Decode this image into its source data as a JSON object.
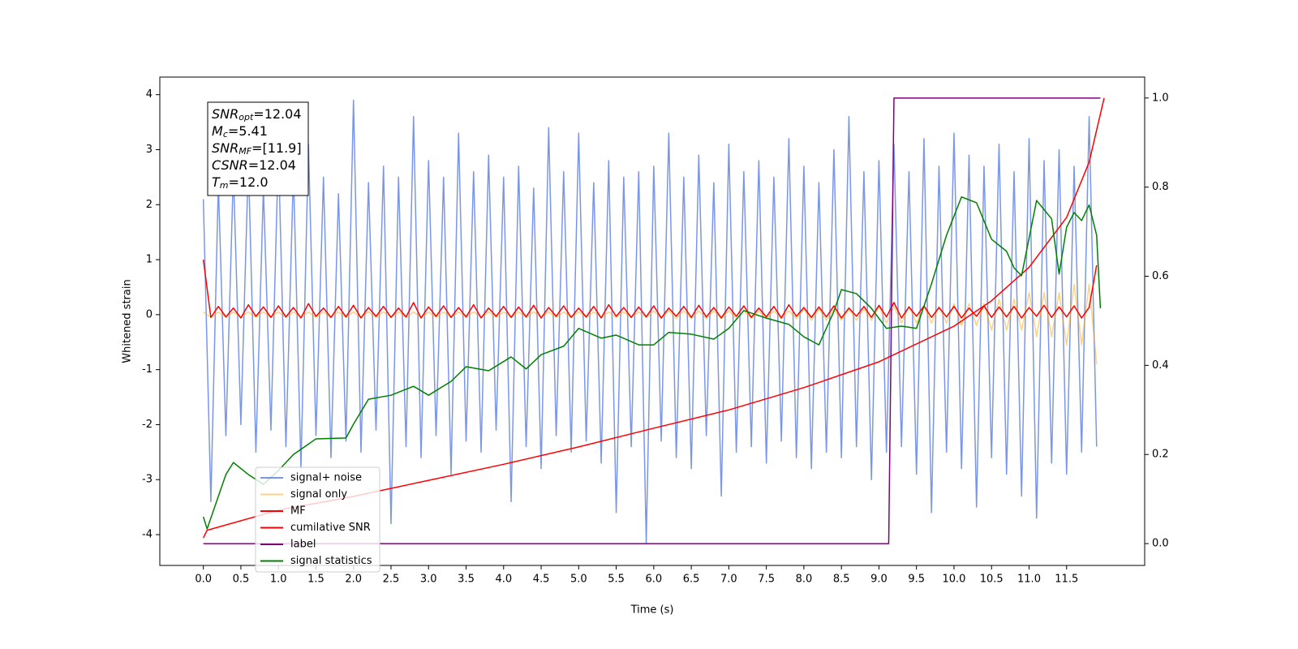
{
  "chart_data": {
    "type": "line",
    "xlabel": "Time (s)",
    "ylabel": "Whitened strain",
    "xlim": [
      -0.58,
      12.54
    ],
    "ylim": [
      -4.56,
      4.32
    ],
    "y2lim": [
      -0.049,
      1.047
    ],
    "xticks": [
      {
        "value": 0,
        "label": "0.0"
      },
      0.5,
      {
        "value": 1,
        "label": "1.0"
      },
      1.5,
      {
        "value": 2,
        "label": "2.0"
      },
      2.5,
      {
        "value": 3,
        "label": "3.0"
      },
      3.5,
      {
        "value": 4,
        "label": "4.0"
      },
      4.5,
      {
        "value": 5,
        "label": "5.0"
      },
      5.5,
      {
        "value": 6,
        "label": "6.0"
      },
      6.5,
      {
        "value": 7,
        "label": "7.0"
      },
      7.5,
      {
        "value": 8,
        "label": "8.0"
      },
      8.5,
      {
        "value": 9,
        "label": "9.0"
      },
      9.5,
      {
        "value": 10,
        "label": "10.0"
      },
      10.5,
      {
        "value": 11,
        "label": "11.0"
      },
      11.5
    ],
    "yticks": [
      -4,
      -3,
      -2,
      -1,
      0,
      1,
      2,
      3,
      4
    ],
    "y2ticks": [
      {
        "value": 0,
        "label": "0.0"
      },
      0.2,
      0.4,
      0.6,
      0.8,
      {
        "value": 1,
        "label": "1.0"
      }
    ],
    "legend_loc": "lower left",
    "annotations": [
      {
        "name": "SNR",
        "sub": "opt",
        "text": "=12.04"
      },
      {
        "name": "M",
        "sub": "c",
        "text": "=5.41"
      },
      {
        "name": "SNR",
        "sub": "MF",
        "text": "=[11.9]"
      },
      {
        "name": "CSNR",
        "text": "=12.04"
      },
      {
        "name": "T",
        "sub": "m",
        "text": "=12.0"
      }
    ],
    "x": [
      0,
      0.1,
      0.2,
      0.3,
      0.4,
      0.5,
      0.6,
      0.7,
      0.8,
      0.9,
      1,
      1.1,
      1.2,
      1.3,
      1.4,
      1.5,
      1.6,
      1.7,
      1.8,
      1.9,
      2,
      2.1,
      2.2,
      2.3,
      2.4,
      2.5,
      2.6,
      2.7,
      2.8,
      2.9,
      3,
      3.1,
      3.2,
      3.3,
      3.4,
      3.5,
      3.6,
      3.7,
      3.8,
      3.9,
      4,
      4.1,
      4.2,
      4.3,
      4.4,
      4.5,
      4.6,
      4.7,
      4.8,
      4.9,
      5,
      5.1,
      5.2,
      5.3,
      5.4,
      5.5,
      5.6,
      5.7,
      5.8,
      5.9,
      6,
      6.1,
      6.2,
      6.3,
      6.4,
      6.5,
      6.6,
      6.7,
      6.8,
      6.9,
      7,
      7.1,
      7.2,
      7.3,
      7.4,
      7.5,
      7.6,
      7.7,
      7.8,
      7.9,
      8,
      8.1,
      8.2,
      8.3,
      8.4,
      8.5,
      8.6,
      8.7,
      8.8,
      8.9,
      9,
      9.1,
      9.2,
      9.3,
      9.4,
      9.5,
      9.6,
      9.7,
      9.8,
      9.9,
      10,
      10.1,
      10.2,
      10.3,
      10.4,
      10.5,
      10.6,
      10.7,
      10.8,
      10.9,
      11,
      11.1,
      11.2,
      11.3,
      11.4,
      11.5,
      11.6,
      11.7,
      11.8,
      11.9
    ],
    "series": [
      {
        "name": "signal+ noise",
        "color": "royalblue",
        "opacity": 0.7,
        "values": [
          2.1,
          -3.4,
          2.4,
          -2.2,
          2.6,
          -2.0,
          2.8,
          -2.5,
          2.3,
          -2.1,
          3.0,
          -2.4,
          2.6,
          -2.8,
          3.1,
          -2.2,
          2.5,
          -2.6,
          2.2,
          -2.3,
          3.9,
          -2.5,
          2.4,
          -2.1,
          2.7,
          -3.8,
          2.5,
          -2.4,
          3.6,
          -2.6,
          2.8,
          -2.2,
          2.5,
          -2.9,
          3.3,
          -2.3,
          2.6,
          -2.5,
          2.9,
          -2.1,
          2.5,
          -3.4,
          2.7,
          -2.4,
          2.3,
          -2.8,
          3.4,
          -2.2,
          2.6,
          -2.5,
          3.3,
          -2.3,
          2.4,
          -2.7,
          2.8,
          -3.6,
          2.5,
          -2.4,
          2.6,
          -4.15,
          2.7,
          -2.3,
          3.3,
          -2.6,
          2.5,
          -2.8,
          2.9,
          -2.2,
          2.4,
          -3.3,
          3.1,
          -2.5,
          2.6,
          -2.4,
          2.8,
          -2.7,
          2.5,
          -2.3,
          3.2,
          -2.6,
          2.7,
          -2.8,
          2.4,
          -2.5,
          3.0,
          -2.6,
          3.6,
          -2.4,
          2.6,
          -3.0,
          2.8,
          -2.5,
          3.1,
          -2.4,
          2.6,
          -2.9,
          3.2,
          -3.6,
          2.7,
          -2.5,
          3.3,
          -2.8,
          2.9,
          -3.5,
          2.7,
          -2.6,
          3.1,
          -2.9,
          2.6,
          -3.3,
          3.2,
          -3.7,
          2.8,
          -2.7,
          3.0,
          -2.9,
          2.7,
          -2.5,
          3.6,
          -2.4
        ]
      },
      {
        "name": "signal only",
        "color": "orange",
        "opacity": 0.5,
        "values": [
          0.05,
          -0.05,
          0.05,
          -0.05,
          0.05,
          -0.05,
          0.05,
          -0.05,
          0.05,
          -0.05,
          0.05,
          -0.05,
          0.05,
          -0.05,
          0.05,
          -0.05,
          0.05,
          -0.05,
          0.05,
          -0.05,
          0.05,
          -0.05,
          0.05,
          -0.05,
          0.05,
          -0.05,
          0.05,
          -0.05,
          0.05,
          -0.05,
          0.05,
          -0.05,
          0.05,
          -0.05,
          0.05,
          -0.05,
          0.05,
          -0.05,
          0.05,
          -0.05,
          0.05,
          -0.05,
          0.05,
          -0.05,
          0.05,
          -0.05,
          0.05,
          -0.05,
          0.05,
          -0.05,
          0.05,
          -0.05,
          0.05,
          -0.05,
          0.05,
          -0.05,
          0.05,
          -0.05,
          0.05,
          -0.05,
          0.07,
          -0.07,
          0.07,
          -0.07,
          0.07,
          -0.07,
          0.07,
          -0.07,
          0.07,
          -0.07,
          0.07,
          -0.07,
          0.07,
          -0.07,
          0.07,
          -0.07,
          0.07,
          -0.07,
          0.07,
          -0.07,
          0.1,
          -0.1,
          0.1,
          -0.1,
          0.1,
          -0.1,
          0.1,
          -0.1,
          0.1,
          -0.1,
          0.15,
          -0.15,
          0.15,
          -0.15,
          0.15,
          -0.15,
          0.15,
          -0.15,
          0.15,
          -0.15,
          0.2,
          -0.2,
          0.2,
          -0.2,
          0.2,
          -0.28,
          0.28,
          -0.28,
          0.28,
          -0.28,
          0.4,
          -0.4,
          0.4,
          -0.4,
          0.4,
          -0.55,
          0.55,
          -0.55,
          0.55,
          -0.9
        ]
      },
      {
        "name": "MF",
        "color": "red",
        "opacity": 1,
        "values": [
          1.0,
          -0.05,
          0.15,
          -0.04,
          0.12,
          -0.06,
          0.18,
          -0.03,
          0.14,
          -0.05,
          0.16,
          -0.04,
          0.13,
          -0.06,
          0.2,
          -0.03,
          0.12,
          -0.05,
          0.15,
          -0.04,
          0.17,
          -0.06,
          0.13,
          -0.03,
          0.15,
          -0.05,
          0.12,
          -0.04,
          0.22,
          -0.06,
          0.14,
          -0.03,
          0.16,
          -0.05,
          0.13,
          -0.04,
          0.18,
          -0.06,
          0.12,
          -0.03,
          0.15,
          -0.05,
          0.14,
          -0.04,
          0.17,
          -0.06,
          0.13,
          -0.03,
          0.16,
          -0.05,
          0.12,
          -0.04,
          0.15,
          -0.06,
          0.18,
          -0.03,
          0.13,
          -0.05,
          0.14,
          -0.04,
          0.16,
          -0.06,
          0.12,
          -0.03,
          0.15,
          -0.05,
          0.17,
          -0.04,
          0.13,
          -0.06,
          0.14,
          -0.03,
          0.16,
          -0.05,
          0.12,
          -0.04,
          0.15,
          -0.06,
          0.18,
          -0.03,
          0.13,
          -0.05,
          0.14,
          -0.04,
          0.16,
          -0.06,
          0.12,
          -0.03,
          0.15,
          -0.05,
          0.17,
          -0.04,
          0.22,
          -0.06,
          0.14,
          -0.03,
          0.16,
          -0.05,
          0.13,
          -0.04,
          0.15,
          -0.06,
          0.12,
          -0.03,
          0.16,
          -0.05,
          0.14,
          -0.04,
          0.15,
          -0.06,
          0.13,
          -0.03,
          0.17,
          -0.05,
          0.14,
          -0.04,
          0.16,
          -0.06,
          0.13,
          0.9
        ]
      },
      {
        "name": "cumilative SNR",
        "color": "red",
        "opacity": 1,
        "axis": "y2",
        "x": [
          0,
          0.05,
          1,
          2,
          3,
          4,
          5,
          6,
          7,
          8,
          9,
          10,
          10.5,
          11,
          11.5,
          11.8,
          12
        ],
        "values": [
          0.013,
          0.03,
          0.075,
          0.106,
          0.142,
          0.178,
          0.217,
          0.259,
          0.3,
          0.35,
          0.408,
          0.488,
          0.545,
          0.62,
          0.732,
          0.856,
          1.0
        ]
      },
      {
        "name": "label",
        "color": "purple",
        "opacity": 1,
        "axis": "y2",
        "x": [
          0,
          9.13,
          9.2,
          11.95
        ],
        "values": [
          0,
          0,
          1,
          1
        ]
      },
      {
        "name": "signal statistics",
        "color": "green",
        "opacity": 1,
        "axis": "y2",
        "x": [
          0,
          0.05,
          0.3,
          0.4,
          0.6,
          0.8,
          1.0,
          1.2,
          1.5,
          1.9,
          2.0,
          2.2,
          2.5,
          2.8,
          3.0,
          3.3,
          3.5,
          3.8,
          4.1,
          4.3,
          4.5,
          4.8,
          5.0,
          5.3,
          5.5,
          5.8,
          6.0,
          6.2,
          6.5,
          6.8,
          7.0,
          7.2,
          7.5,
          7.8,
          8.0,
          8.2,
          8.4,
          8.5,
          8.7,
          8.9,
          9.1,
          9.3,
          9.5,
          9.7,
          9.9,
          10.1,
          10.3,
          10.5,
          10.7,
          10.8,
          10.9,
          11.1,
          11.3,
          11.4,
          11.5,
          11.6,
          11.7,
          11.8,
          11.9,
          11.95
        ],
        "values": [
          0.06,
          0.033,
          0.155,
          0.182,
          0.155,
          0.133,
          0.164,
          0.2,
          0.235,
          0.237,
          0.268,
          0.324,
          0.333,
          0.353,
          0.333,
          0.364,
          0.397,
          0.388,
          0.419,
          0.392,
          0.424,
          0.443,
          0.483,
          0.461,
          0.468,
          0.446,
          0.446,
          0.474,
          0.47,
          0.459,
          0.483,
          0.523,
          0.506,
          0.492,
          0.464,
          0.446,
          0.521,
          0.57,
          0.561,
          0.528,
          0.483,
          0.488,
          0.483,
          0.583,
          0.692,
          0.778,
          0.765,
          0.683,
          0.656,
          0.619,
          0.601,
          0.77,
          0.729,
          0.605,
          0.71,
          0.743,
          0.725,
          0.76,
          0.692,
          0.528
        ]
      }
    ]
  }
}
